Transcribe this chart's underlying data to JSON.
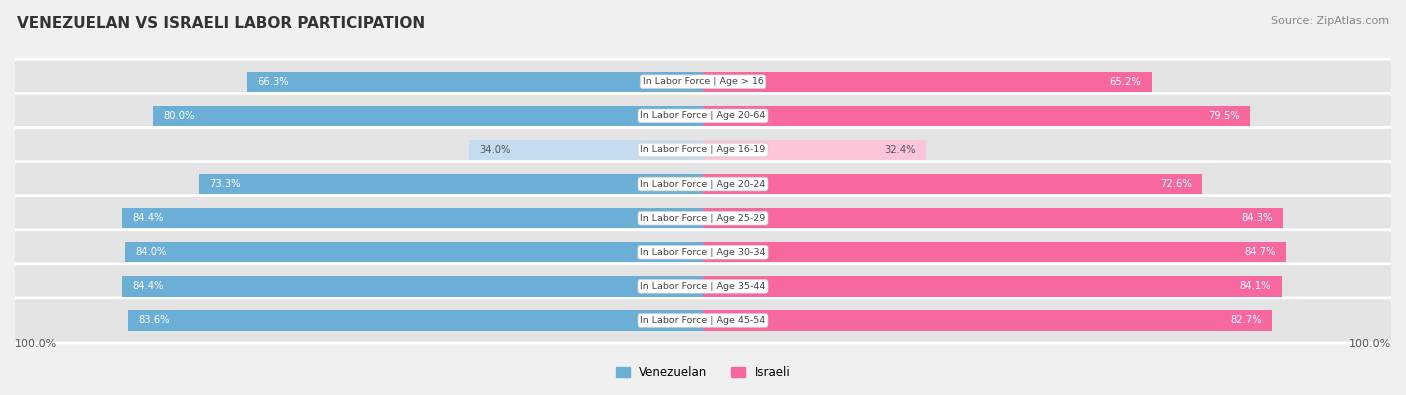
{
  "title": "VENEZUELAN VS ISRAELI LABOR PARTICIPATION",
  "source": "Source: ZipAtlas.com",
  "categories": [
    "In Labor Force | Age > 16",
    "In Labor Force | Age 20-64",
    "In Labor Force | Age 16-19",
    "In Labor Force | Age 20-24",
    "In Labor Force | Age 25-29",
    "In Labor Force | Age 30-34",
    "In Labor Force | Age 35-44",
    "In Labor Force | Age 45-54"
  ],
  "venezuelan_values": [
    66.3,
    80.0,
    34.0,
    73.3,
    84.4,
    84.0,
    84.4,
    83.6
  ],
  "israeli_values": [
    65.2,
    79.5,
    32.4,
    72.6,
    84.3,
    84.7,
    84.1,
    82.7
  ],
  "venezuelan_color": "#6baed6",
  "venezuelan_color_light": "#c6dbef",
  "israeli_color": "#f768a1",
  "israeli_color_light": "#fcc5dc",
  "bg_color": "#f0f0f0",
  "row_bg_color": "#e4e4e4",
  "max_value": 100.0,
  "legend_venezuelan": "Venezuelan",
  "legend_israeli": "Israeli",
  "bottom_left_label": "100.0%",
  "bottom_right_label": "100.0%"
}
